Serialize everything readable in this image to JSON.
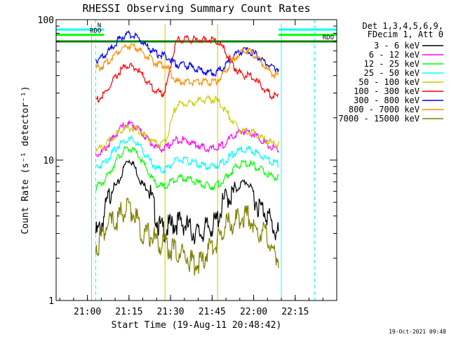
{
  "chart_data": {
    "type": "line",
    "title": "RHESSI Observing Summary Count Rates",
    "xlabel": "Start Time (19-Aug-11 20:48:42)",
    "ylabel": "Count Rate (s⁻¹ detector⁻¹)",
    "yscale": "log",
    "ylim": [
      1,
      100
    ],
    "xlim": [
      "20:48:42",
      "22:30:00"
    ],
    "x_ticks": [
      "21:00",
      "21:15",
      "21:30",
      "21:45",
      "22:00",
      "22:15"
    ],
    "y_ticks": [
      "1",
      "10",
      "100"
    ],
    "grid": false,
    "legend": {
      "placement": "right",
      "header": [
        "Det 1,3,4,5,6,9,",
        "FDecim 1, Att 0"
      ]
    },
    "series": [
      {
        "name": "3 - 6 keV",
        "color": "#000000",
        "x": [
          "21:03",
          "21:10",
          "21:15",
          "21:21",
          "21:27",
          "21:33",
          "21:40",
          "21:45",
          "21:51",
          "21:57",
          "22:03",
          "22:09"
        ],
        "values": [
          3.0,
          6.5,
          10.0,
          6.5,
          3.2,
          3.6,
          3.0,
          3.4,
          5.5,
          7.0,
          4.5,
          3.0
        ]
      },
      {
        "name": "6 - 12 keV",
        "color": "#ff00ff",
        "x": [
          "21:03",
          "21:15",
          "21:27",
          "21:33",
          "21:45",
          "21:57",
          "22:09"
        ],
        "values": [
          11,
          18,
          12,
          14,
          12,
          16,
          12
        ]
      },
      {
        "name": "12 - 25 keV",
        "color": "#00ff00",
        "x": [
          "21:03",
          "21:15",
          "21:27",
          "21:33",
          "21:45",
          "21:57",
          "22:09"
        ],
        "values": [
          6.5,
          12,
          6.5,
          7.5,
          6.5,
          9.5,
          7.5
        ]
      },
      {
        "name": "25 - 50 keV",
        "color": "#00ffff",
        "x": [
          "21:03",
          "21:15",
          "21:27",
          "21:33",
          "21:45",
          "21:57",
          "22:09"
        ],
        "values": [
          9,
          14,
          8.5,
          10,
          9,
          12,
          9.5
        ]
      },
      {
        "name": "50 - 100 keV",
        "color": "#cccc00",
        "x": [
          "21:03",
          "21:15",
          "21:27",
          "21:33",
          "21:45",
          "21:57",
          "22:09"
        ],
        "values": [
          12,
          17,
          13,
          25,
          27,
          16,
          13
        ]
      },
      {
        "name": "100 - 300 keV",
        "color": "#ff0000",
        "x": [
          "21:03",
          "21:15",
          "21:27",
          "21:33",
          "21:45",
          "21:57",
          "22:09"
        ],
        "values": [
          27,
          47,
          30,
          72,
          72,
          40,
          28
        ]
      },
      {
        "name": "300 - 800 keV",
        "color": "#0000ff",
        "x": [
          "21:03",
          "21:15",
          "21:27",
          "21:33",
          "21:45",
          "21:57",
          "22:09"
        ],
        "values": [
          52,
          78,
          56,
          48,
          42,
          60,
          45
        ]
      },
      {
        "name": "800 - 7000 keV",
        "color": "#ff8c00",
        "x": [
          "21:03",
          "21:15",
          "21:27",
          "21:33",
          "21:45",
          "21:57",
          "22:09"
        ],
        "values": [
          45,
          65,
          48,
          36,
          36,
          60,
          40
        ]
      },
      {
        "name": "7000 - 15000 keV",
        "color": "#808000",
        "x": [
          "21:03",
          "21:08",
          "21:15",
          "21:21",
          "21:27",
          "21:33",
          "21:40",
          "21:45",
          "21:51",
          "21:57",
          "22:03",
          "22:09"
        ],
        "values": [
          2.5,
          3.5,
          4.5,
          3.0,
          2.5,
          2.2,
          1.8,
          2.4,
          3.5,
          4.0,
          3.0,
          2.0
        ]
      }
    ],
    "flag_bars": [
      {
        "label": "N",
        "color": "#00ffff",
        "value": 85,
        "segments": [
          [
            "20:48:42",
            "21:06"
          ],
          [
            "22:09",
            "22:30"
          ]
        ]
      },
      {
        "label": "RDO",
        "color": "#00ff00",
        "value": 78,
        "segments": [
          [
            "20:48:42",
            "21:06"
          ],
          [
            "22:09",
            "22:30"
          ]
        ]
      },
      {
        "label": "RDO",
        "color": "#008000",
        "value": 70,
        "segments": [
          [
            "20:48:42",
            "22:30"
          ]
        ]
      }
    ],
    "night_markers": [
      {
        "time": "21:03",
        "color": "#00ffff",
        "style": "dashed"
      },
      {
        "time": "22:22",
        "color": "#00ffff",
        "style": "dashed"
      }
    ],
    "orbit_markers": [
      {
        "time": "21:01:30",
        "color": "#00ffff"
      },
      {
        "time": "21:28",
        "color": "#cccc00"
      },
      {
        "time": "21:47",
        "color": "#cccc00"
      },
      {
        "time": "22:10",
        "color": "#00ffff"
      }
    ],
    "footer": "19-Oct-2021 09:48"
  }
}
